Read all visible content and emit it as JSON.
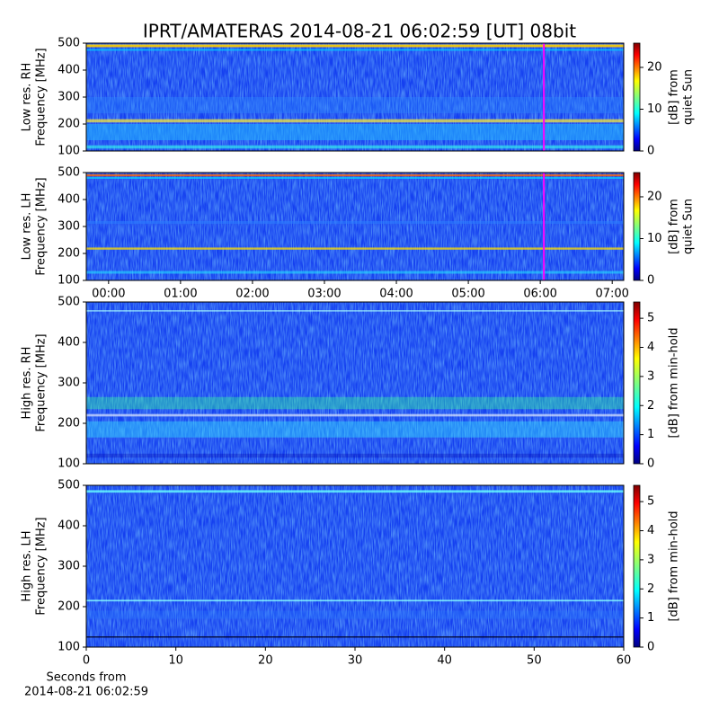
{
  "chart_data": [
    {
      "type": "spectrogram",
      "title": "IPRT/AMATERAS 2014-08-21 06:02:59 [UT]   08bit",
      "ylabel": [
        "Low res. RH",
        "Frequency [MHz]"
      ],
      "ylim": [
        100,
        500
      ],
      "yticks": [
        100,
        200,
        300,
        400,
        500
      ],
      "xlim": [
        -0.31,
        7.16
      ],
      "marker": {
        "value": 6.05,
        "color": "#ff00ff"
      },
      "colorbar_label": [
        "[dB] from",
        "quiet Sun"
      ],
      "clim": [
        0,
        25.8
      ],
      "cticks": [
        0,
        10,
        20
      ]
    },
    {
      "type": "spectrogram",
      "ylabel": [
        "Low res. LH",
        "Frequency [MHz]"
      ],
      "ylim": [
        100,
        500
      ],
      "yticks": [
        100,
        200,
        300,
        400,
        500
      ],
      "xlim": [
        -0.31,
        7.16
      ],
      "xticks": [
        {
          "value": 0,
          "label": "00:00"
        },
        {
          "value": 1,
          "label": "01:00"
        },
        {
          "value": 2,
          "label": "02:00"
        },
        {
          "value": 3,
          "label": "03:00"
        },
        {
          "value": 4,
          "label": "04:00"
        },
        {
          "value": 5,
          "label": "05:00"
        },
        {
          "value": 6,
          "label": "06:00"
        },
        {
          "value": 7,
          "label": "07:00"
        }
      ],
      "marker": {
        "value": 6.05,
        "color": "#ff00ff"
      },
      "colorbar_label": [
        "[dB] from",
        "quiet Sun"
      ],
      "clim": [
        0,
        25.8
      ],
      "cticks": [
        0,
        10,
        20
      ]
    },
    {
      "type": "spectrogram",
      "ylabel": [
        "High res. RH",
        "Frequency [MHz]"
      ],
      "ylim": [
        100,
        500
      ],
      "yticks": [
        100,
        200,
        300,
        400,
        500
      ],
      "xlim": [
        0,
        60
      ],
      "colorbar_label": [
        "[dB] from min-hold"
      ],
      "clim": [
        0,
        5.56
      ],
      "cticks": [
        0,
        1,
        2,
        3,
        4,
        5
      ]
    },
    {
      "type": "spectrogram",
      "ylabel": [
        "High res. LH",
        "Frequency [MHz]"
      ],
      "ylim": [
        100,
        500
      ],
      "yticks": [
        100,
        200,
        300,
        400,
        500
      ],
      "xlim": [
        0,
        60
      ],
      "xticks": [
        0,
        10,
        20,
        30,
        40,
        50,
        60
      ],
      "xlabel": [
        "Seconds from",
        "2014-08-21 06:02:59"
      ],
      "colorbar_label": [
        "[dB] from min-hold"
      ],
      "clim": [
        0,
        5.56
      ],
      "cticks": [
        0,
        1,
        2,
        3,
        4,
        5
      ]
    }
  ]
}
